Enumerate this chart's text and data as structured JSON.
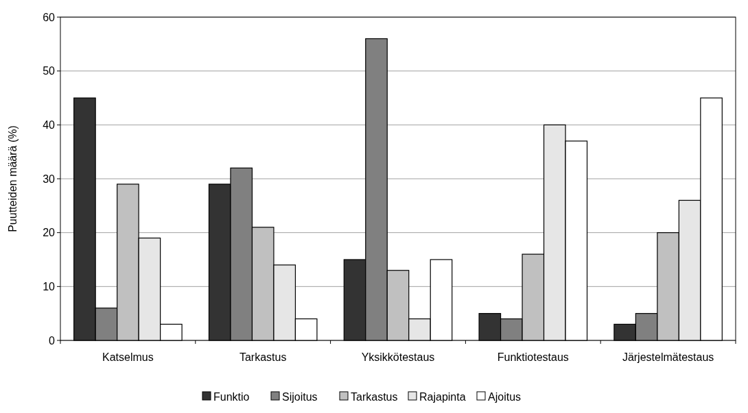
{
  "chart_data": {
    "type": "bar",
    "ylabel": "Puutteiden määrä (%)",
    "categories": [
      "Katselmus",
      "Tarkastus",
      "Yksikkötestaus",
      "Funktiotestaus",
      "Järjestelmätestaus"
    ],
    "series": [
      {
        "name": "Funktio",
        "color": "#333333",
        "values": [
          45,
          29,
          15,
          5,
          3
        ]
      },
      {
        "name": "Sijoitus",
        "color": "#808080",
        "values": [
          6,
          32,
          56,
          4,
          5
        ]
      },
      {
        "name": "Tarkastus",
        "color": "#c0c0c0",
        "values": [
          29,
          21,
          13,
          16,
          20
        ]
      },
      {
        "name": "Rajapinta",
        "color": "#e6e6e6",
        "values": [
          19,
          14,
          4,
          40,
          26
        ]
      },
      {
        "name": "Ajoitus",
        "color": "#ffffff",
        "values": [
          3,
          4,
          15,
          37,
          45
        ]
      }
    ],
    "ylim": [
      0,
      60
    ],
    "yticks": [
      0,
      10,
      20,
      30,
      40,
      50,
      60
    ],
    "grid": "y",
    "legend": "bottom"
  }
}
